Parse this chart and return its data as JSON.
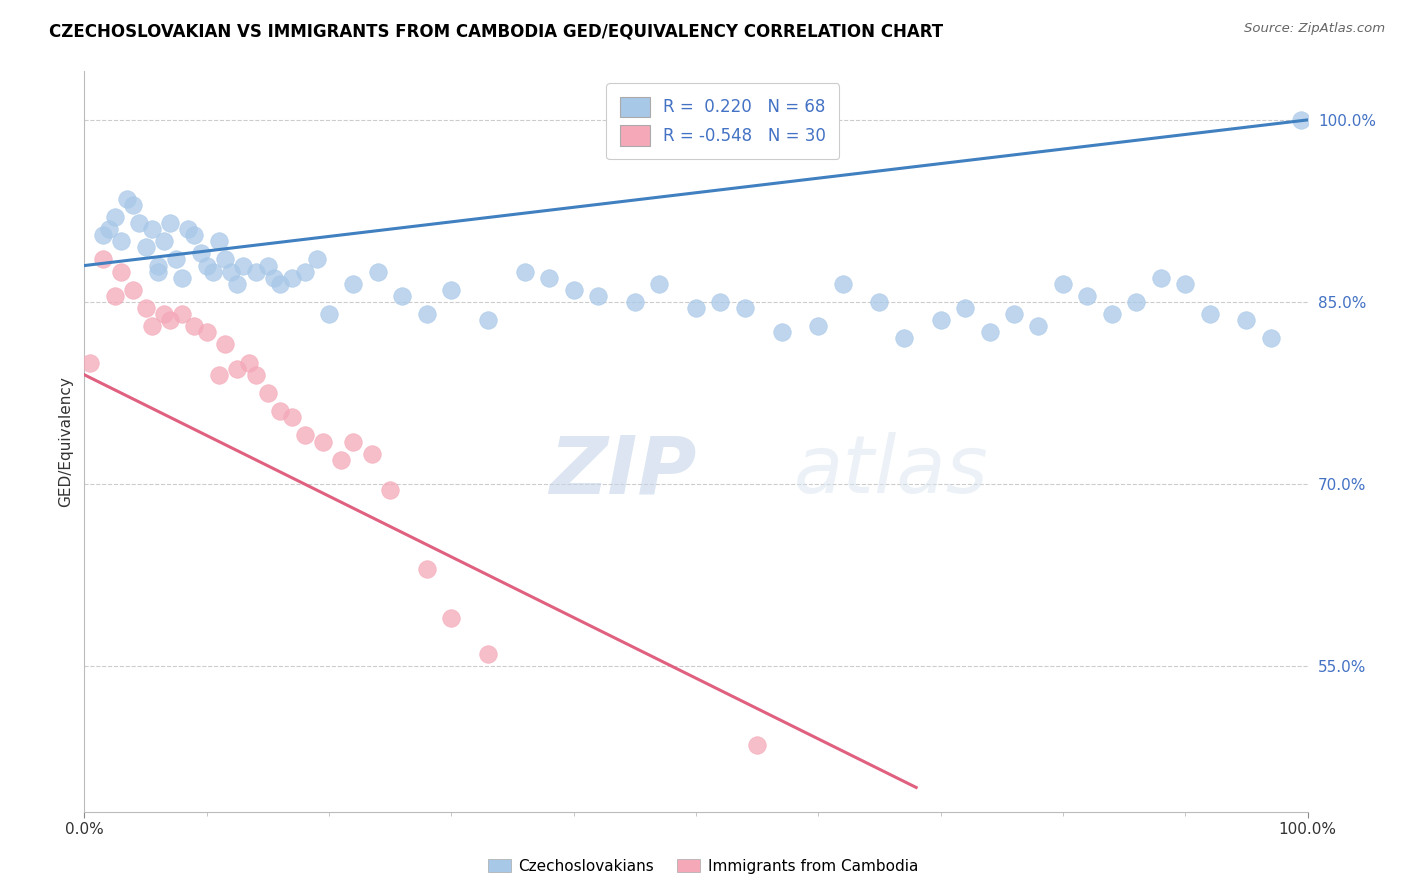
{
  "title": "CZECHOSLOVAKIAN VS IMMIGRANTS FROM CAMBODIA GED/EQUIVALENCY CORRELATION CHART",
  "source": "Source: ZipAtlas.com",
  "ylabel": "GED/Equivalency",
  "legend_label1": "Czechoslovakians",
  "legend_label2": "Immigrants from Cambodia",
  "R1": 0.22,
  "N1": 68,
  "R2": -0.548,
  "N2": 30,
  "blue_color": "#A8C8E8",
  "pink_color": "#F4A8B8",
  "blue_line_color": "#4080C0",
  "pink_line_color": "#E06080",
  "watermark_ZIP": "ZIP",
  "watermark_atlas": "atlas",
  "blue_line_x": [
    0,
    100
  ],
  "blue_line_y": [
    88.0,
    100.0
  ],
  "pink_line_x": [
    0,
    68
  ],
  "pink_line_y": [
    79.0,
    45.0
  ],
  "y_ticks": [
    55.0,
    70.0,
    85.0,
    100.0
  ],
  "y_tick_labels": [
    "55.0%",
    "70.0%",
    "85.0%",
    "100.0%"
  ],
  "ylim_min": 43.0,
  "ylim_max": 104.0,
  "xlim_min": 0.0,
  "xlim_max": 100.0,
  "blue_x": [
    1.5,
    2.0,
    2.5,
    3.0,
    3.5,
    4.0,
    4.5,
    5.0,
    5.5,
    6.0,
    6.0,
    6.5,
    7.0,
    7.5,
    8.0,
    8.5,
    9.0,
    9.5,
    10.0,
    10.5,
    11.0,
    11.5,
    12.0,
    12.5,
    13.0,
    14.0,
    15.0,
    15.5,
    16.0,
    17.0,
    18.0,
    19.0,
    20.0,
    22.0,
    24.0,
    26.0,
    28.0,
    30.0,
    33.0,
    36.0,
    38.0,
    40.0,
    42.0,
    45.0,
    47.0,
    50.0,
    52.0,
    54.0,
    57.0,
    60.0,
    62.0,
    65.0,
    67.0,
    70.0,
    72.0,
    74.0,
    76.0,
    78.0,
    80.0,
    82.0,
    84.0,
    86.0,
    88.0,
    90.0,
    92.0,
    95.0,
    97.0,
    99.5
  ],
  "blue_y": [
    90.5,
    91.0,
    92.0,
    90.0,
    93.5,
    93.0,
    91.5,
    89.5,
    91.0,
    88.0,
    87.5,
    90.0,
    91.5,
    88.5,
    87.0,
    91.0,
    90.5,
    89.0,
    88.0,
    87.5,
    90.0,
    88.5,
    87.5,
    86.5,
    88.0,
    87.5,
    88.0,
    87.0,
    86.5,
    87.0,
    87.5,
    88.5,
    84.0,
    86.5,
    87.5,
    85.5,
    84.0,
    86.0,
    83.5,
    87.5,
    87.0,
    86.0,
    85.5,
    85.0,
    86.5,
    84.5,
    85.0,
    84.5,
    82.5,
    83.0,
    86.5,
    85.0,
    82.0,
    83.5,
    84.5,
    82.5,
    84.0,
    83.0,
    86.5,
    85.5,
    84.0,
    85.0,
    87.0,
    86.5,
    84.0,
    83.5,
    82.0,
    100.0
  ],
  "pink_x": [
    0.5,
    1.5,
    2.5,
    3.0,
    4.0,
    5.0,
    5.5,
    6.5,
    7.0,
    8.0,
    9.0,
    10.0,
    11.0,
    11.5,
    12.5,
    13.5,
    14.0,
    15.0,
    16.0,
    17.0,
    18.0,
    19.5,
    21.0,
    22.0,
    23.5,
    25.0,
    28.0,
    30.0,
    33.0,
    55.0
  ],
  "pink_y": [
    80.0,
    88.5,
    85.5,
    87.5,
    86.0,
    84.5,
    83.0,
    84.0,
    83.5,
    84.0,
    83.0,
    82.5,
    79.0,
    81.5,
    79.5,
    80.0,
    79.0,
    77.5,
    76.0,
    75.5,
    74.0,
    73.5,
    72.0,
    73.5,
    72.5,
    69.5,
    63.0,
    59.0,
    56.0,
    48.5
  ]
}
